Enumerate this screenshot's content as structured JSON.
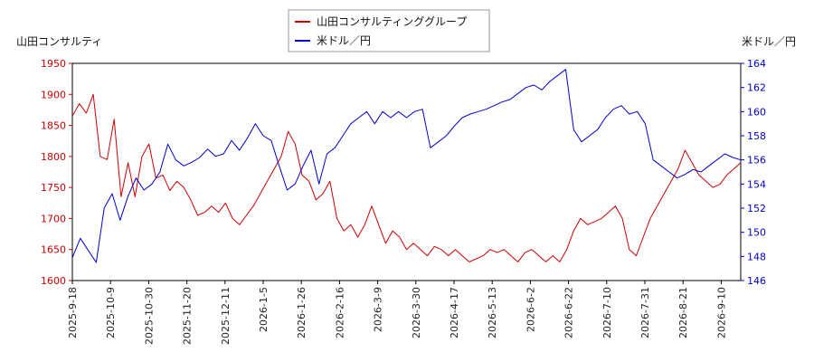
{
  "chart_data": {
    "type": "line",
    "legend_placement": "top-center",
    "grid": false,
    "y_left_label": "山田コンサルティ",
    "y_right_label": "米ドル／円",
    "left_ticks": [
      "1600",
      "1650",
      "1700",
      "1750",
      "1800",
      "1850",
      "1900",
      "1950"
    ],
    "right_ticks": [
      "146",
      "148",
      "150",
      "152",
      "154",
      "156",
      "158",
      "160",
      "162",
      "164"
    ],
    "ylim_left": [
      1600,
      1950
    ],
    "ylim_right": [
      146,
      164
    ],
    "x_ticks": [
      "2025-9-18",
      "2025-10-9",
      "2025-10-30",
      "2025-11-20",
      "2025-12-11",
      "2026-1-5",
      "2026-1-26",
      "2026-2-16",
      "2026-3-9",
      "2026-3-30",
      "2026-4-17",
      "2026-5-13",
      "2026-6-2",
      "2026-6-22",
      "2026-7-10",
      "2026-7-31",
      "2026-8-21",
      "2026-9-10"
    ],
    "series": [
      {
        "name": "山田コンサルティンググループ",
        "axis": "left",
        "color": "#cc0000",
        "values": [
          1865,
          1885,
          1870,
          1900,
          1800,
          1795,
          1860,
          1735,
          1790,
          1735,
          1800,
          1820,
          1765,
          1770,
          1745,
          1760,
          1750,
          1730,
          1705,
          1710,
          1720,
          1710,
          1725,
          1700,
          1690,
          1705,
          1720,
          1740,
          1760,
          1780,
          1800,
          1840,
          1820,
          1770,
          1760,
          1730,
          1740,
          1760,
          1700,
          1680,
          1690,
          1670,
          1690,
          1720,
          1690,
          1660,
          1680,
          1670,
          1650,
          1660,
          1650,
          1640,
          1655,
          1650,
          1640,
          1650,
          1640,
          1630,
          1635,
          1640,
          1650,
          1645,
          1650,
          1640,
          1630,
          1645,
          1650,
          1640,
          1630,
          1640,
          1630,
          1650,
          1680,
          1700,
          1690,
          1695,
          1700,
          1710,
          1720,
          1700,
          1650,
          1640,
          1670,
          1700,
          1720,
          1740,
          1760,
          1780,
          1810,
          1790,
          1770,
          1760,
          1750,
          1755,
          1770,
          1780,
          1790
        ]
      },
      {
        "name": "米ドル／円",
        "axis": "right",
        "color": "#0000cc",
        "values": [
          147.9,
          149.5,
          148.5,
          147.5,
          152.0,
          153.2,
          151.0,
          153.0,
          154.5,
          153.5,
          154.0,
          155.0,
          157.3,
          156.0,
          155.5,
          155.8,
          156.2,
          156.9,
          156.3,
          156.5,
          157.6,
          156.8,
          157.8,
          159.0,
          158.0,
          157.6,
          155.5,
          153.5,
          154.0,
          155.5,
          156.8,
          154.0,
          156.5,
          157.0,
          158.0,
          159.0,
          159.5,
          160.0,
          159.0,
          160.0,
          159.5,
          160.0,
          159.5,
          160.0,
          160.2,
          157.0,
          157.5,
          158.0,
          158.8,
          159.5,
          159.8,
          160.0,
          160.2,
          160.5,
          160.8,
          161.0,
          161.5,
          162.0,
          162.2,
          161.8,
          162.5,
          163.0,
          163.5,
          158.5,
          157.5,
          158.0,
          158.5,
          159.5,
          160.2,
          160.5,
          159.8,
          160.0,
          159.0,
          156.0,
          155.5,
          155.0,
          154.5,
          154.8,
          155.2,
          155.0,
          155.5,
          156.0,
          156.5,
          156.2,
          156.0
        ]
      }
    ]
  }
}
